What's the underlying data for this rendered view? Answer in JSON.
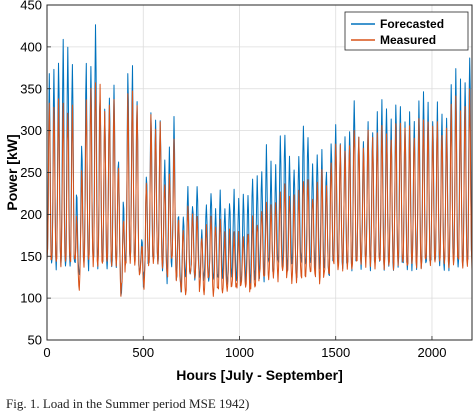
{
  "chart_data": {
    "type": "line",
    "title": "",
    "xlabel": "Hours [July - September]",
    "ylabel": "Power [kW]",
    "xlim": [
      0,
      2208
    ],
    "ylim": [
      50,
      450
    ],
    "xticks": [
      0,
      500,
      1000,
      1500,
      2000
    ],
    "yticks": [
      50,
      100,
      150,
      200,
      250,
      300,
      350,
      400,
      450
    ],
    "grid": true,
    "legend": "top-right",
    "series": [
      {
        "name": "Forecasted",
        "color": "#0072BD",
        "description": "daily peaks",
        "x": [
          0,
          60,
          90,
          140,
          160,
          200,
          210,
          260,
          280,
          300,
          340,
          360,
          390,
          420,
          430,
          470,
          490,
          540,
          560,
          590,
          620,
          660,
          690,
          730,
          750,
          760,
          790,
          800,
          830,
          840,
          860,
          880,
          900,
          930,
          940,
          960,
          990,
          1000,
          1020,
          1050,
          1070,
          1090,
          1110,
          1120,
          1140,
          1180,
          1200,
          1230,
          1260,
          1300,
          1320,
          1350,
          1380,
          1400,
          1440,
          1460,
          1480,
          1500,
          1520,
          1540,
          1560,
          1580,
          1600,
          1620,
          1640,
          1660,
          1700,
          1730,
          1760,
          1800,
          1820,
          1860,
          1880,
          1920,
          1940,
          1980,
          2000,
          2040,
          2060,
          2100,
          2120,
          2160,
          2200
        ],
        "peaks": [
          355,
          388,
          410,
          375,
          175,
          395,
          340,
          440,
          320,
          330,
          355,
          335,
          165,
          375,
          395,
          330,
          160,
          325,
          318,
          315,
          250,
          312,
          175,
          240,
          210,
          220,
          250,
          185,
          215,
          240,
          220,
          205,
          230,
          210,
          190,
          235,
          220,
          215,
          225,
          230,
          245,
          240,
          265,
          245,
          280,
          240,
          280,
          300,
          270,
          250,
          290,
          310,
          255,
          270,
          275,
          240,
          295,
          305,
          285,
          295,
          300,
          310,
          345,
          300,
          285,
          310,
          300,
          335,
          335,
          300,
          350,
          310,
          320,
          305,
          355,
          330,
          315,
          345,
          290,
          355,
          375,
          345,
          400
        ]
      },
      {
        "name": "Measured",
        "color": "#D95319",
        "description": "daily peaks",
        "x": [
          0,
          60,
          90,
          140,
          160,
          200,
          210,
          260,
          280,
          300,
          340,
          360,
          390,
          420,
          430,
          470,
          490,
          540,
          560,
          590,
          620,
          660,
          690,
          730,
          750,
          760,
          790,
          800,
          830,
          840,
          860,
          880,
          900,
          930,
          940,
          960,
          990,
          1000,
          1020,
          1050,
          1070,
          1090,
          1110,
          1120,
          1140,
          1180,
          1200,
          1230,
          1260,
          1300,
          1320,
          1350,
          1380,
          1400,
          1440,
          1460,
          1480,
          1500,
          1520,
          1540,
          1560,
          1580,
          1600,
          1620,
          1640,
          1660,
          1700,
          1730,
          1760,
          1800,
          1820,
          1860,
          1880,
          1920,
          1940,
          1980,
          2000,
          2040,
          2060,
          2100,
          2120,
          2160,
          2200
        ],
        "peaks": [
          330,
          335,
          330,
          325,
          160,
          340,
          335,
          365,
          345,
          320,
          340,
          330,
          155,
          340,
          350,
          335,
          150,
          320,
          310,
          305,
          210,
          295,
          165,
          205,
          200,
          210,
          200,
          175,
          190,
          205,
          195,
          185,
          190,
          175,
          170,
          185,
          170,
          175,
          180,
          185,
          195,
          190,
          205,
          200,
          215,
          205,
          225,
          235,
          225,
          215,
          240,
          255,
          225,
          240,
          260,
          230,
          275,
          285,
          275,
          280,
          280,
          290,
          310,
          290,
          280,
          295,
          285,
          300,
          305,
          290,
          310,
          300,
          305,
          295,
          320,
          310,
          300,
          320,
          280,
          325,
          335,
          320,
          350
        ]
      }
    ]
  },
  "legend": {
    "forecasted_label": "Forecasted",
    "measured_label": "Measured"
  },
  "caption": "Fig. 1. Load in the Summer period MSE 1942)"
}
